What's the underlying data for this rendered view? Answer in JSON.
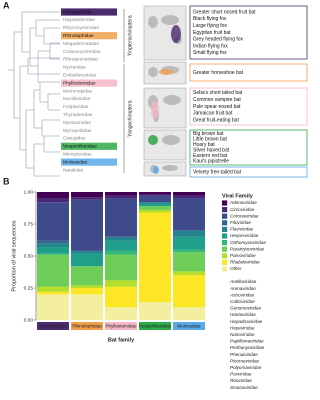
{
  "panel_a": {
    "letter": "A",
    "suborders": [
      "Yinpterochiroptera",
      "Yangochiroptera"
    ],
    "families": [
      {
        "name": "Pteropodidae",
        "color": "#4b2a6e"
      },
      {
        "name": "Hipposideridae"
      },
      {
        "name": "Rhynonycteridae"
      },
      {
        "name": "Rhinolophidae",
        "color": "#f0a04b"
      },
      {
        "name": "Megadermatidae"
      },
      {
        "name": "Craseonycteridae"
      },
      {
        "name": "Rhinopomatidae"
      },
      {
        "name": "Nycteridae"
      },
      {
        "name": "Emballonuridae"
      },
      {
        "name": "Phyllostomidae",
        "color": "#f4b6c2"
      },
      {
        "name": "Mormoopidae"
      },
      {
        "name": "Noctilionidae"
      },
      {
        "name": "Furipteridae"
      },
      {
        "name": "Thyropteridae"
      },
      {
        "name": "Mystacinidae"
      },
      {
        "name": "Myzopodidae"
      },
      {
        "name": "Cistugidae"
      },
      {
        "name": "Vespertilionidae",
        "color": "#2eaa4a"
      },
      {
        "name": "Miniopteridae"
      },
      {
        "name": "Molossidae",
        "color": "#5aa9e6"
      },
      {
        "name": "Natalidae"
      }
    ],
    "species_groups": [
      {
        "color": "#4b2a6e",
        "species": [
          "Greater short nosed fruit bat",
          "Black flying fox",
          "Large flying fox",
          "Egyptian fruit bat",
          "Grey headed flying fox",
          "Indian flying fox",
          "Small flying fox"
        ]
      },
      {
        "color": "#f0a04b",
        "species": [
          "Greater horseshoe bat"
        ]
      },
      {
        "color": "#f4b6c2",
        "species": [
          "Seba's short tailed bat",
          "Common vampire bat",
          "Pale spear-nosed bat",
          "Jamaican fruit bat",
          "Great fruit-eating bat"
        ]
      },
      {
        "color": "#2eaa4a",
        "species": [
          "Big brown bat",
          "Little brown bat",
          "Hoary bat",
          "Silver haired bat",
          "Eastern red bat",
          "Kaul's pipistrelle"
        ]
      },
      {
        "color": "#5aa9e6",
        "species": [
          "Velvety free-tailed bat"
        ]
      }
    ]
  },
  "chart_data": {
    "type": "stacked_bar",
    "letter": "B",
    "x_label": "Bat family",
    "y_label": "Proportion of viral sequences",
    "legend_title": "Viral Family",
    "categories": [
      "Pteropodidae",
      "Rhinolophidae",
      "Phyllostomidae",
      "Vespertilionidae",
      "Molossidae"
    ],
    "category_colors": [
      "#4b2a6e",
      "#f0a04b",
      "#f4b6c2",
      "#2eaa4a",
      "#5aa9e6"
    ],
    "ylim": [
      0,
      1
    ],
    "yticks": [
      {
        "value": 0,
        "label": "0.00"
      },
      {
        "value": 0.25,
        "label": "0.25"
      },
      {
        "value": 0.5,
        "label": "0.50"
      },
      {
        "value": 0.75,
        "label": "0.75"
      },
      {
        "value": 1,
        "label": "1.00"
      }
    ],
    "series": [
      {
        "name": "Adenoviridae",
        "color": "#440154",
        "values": [
          0.05,
          0.04,
          0.03,
          0.02,
          0.03
        ]
      },
      {
        "name": "Circoviridae",
        "color": "#482878",
        "values": [
          0.03,
          0.02,
          0.02,
          0.01,
          0.02
        ]
      },
      {
        "name": "Coronaviridae",
        "color": "#3e4a89",
        "values": [
          0.3,
          0.4,
          0.3,
          0.05,
          0.25
        ]
      },
      {
        "name": "Filoviridae",
        "color": "#31688e",
        "values": [
          0.02,
          0,
          0,
          0,
          0
        ]
      },
      {
        "name": "Flaviviridae",
        "color": "#26828e",
        "values": [
          0.03,
          0.02,
          0.03,
          0.01,
          0.05
        ]
      },
      {
        "name": "Herpesviridae",
        "color": "#1f9e89",
        "values": [
          0.05,
          0.1,
          0.08,
          0.02,
          0.1
        ]
      },
      {
        "name": "Orthomyxoviridae",
        "color": "#35b779",
        "values": [
          0.01,
          0,
          0.03,
          0,
          0.02
        ]
      },
      {
        "name": "Paramyxoviridae",
        "color": "#6ece58",
        "values": [
          0.25,
          0.15,
          0.2,
          0.03,
          0.15
        ]
      },
      {
        "name": "Parvoviridae",
        "color": "#b5de2b",
        "values": [
          0.04,
          0.02,
          0.05,
          0.02,
          0.03
        ]
      },
      {
        "name": "Rhabdoviridae",
        "color": "#fde725",
        "values": [
          0.02,
          0.05,
          0.16,
          0.7,
          0.25
        ]
      },
      {
        "name": "Other",
        "color": "#f3eea0",
        "values": [
          0.2,
          0.2,
          0.1,
          0.14,
          0.1
        ]
      }
    ],
    "other_families": [
      "Anelloviridae",
      "Arenaviridae",
      "Astroviridae",
      "Caliciviridae",
      "Genomoviridae",
      "Hantaviridae",
      "Hepadnaviridae",
      "Hepeviridae",
      "Nairoviridae",
      "Papillomaviridae",
      "Peribunyaviridae",
      "Phenuiviridae",
      "Picornaviridae",
      "Polyomaviridae",
      "Poxviridae",
      "Reoviridae",
      "Smacoviridae"
    ]
  }
}
